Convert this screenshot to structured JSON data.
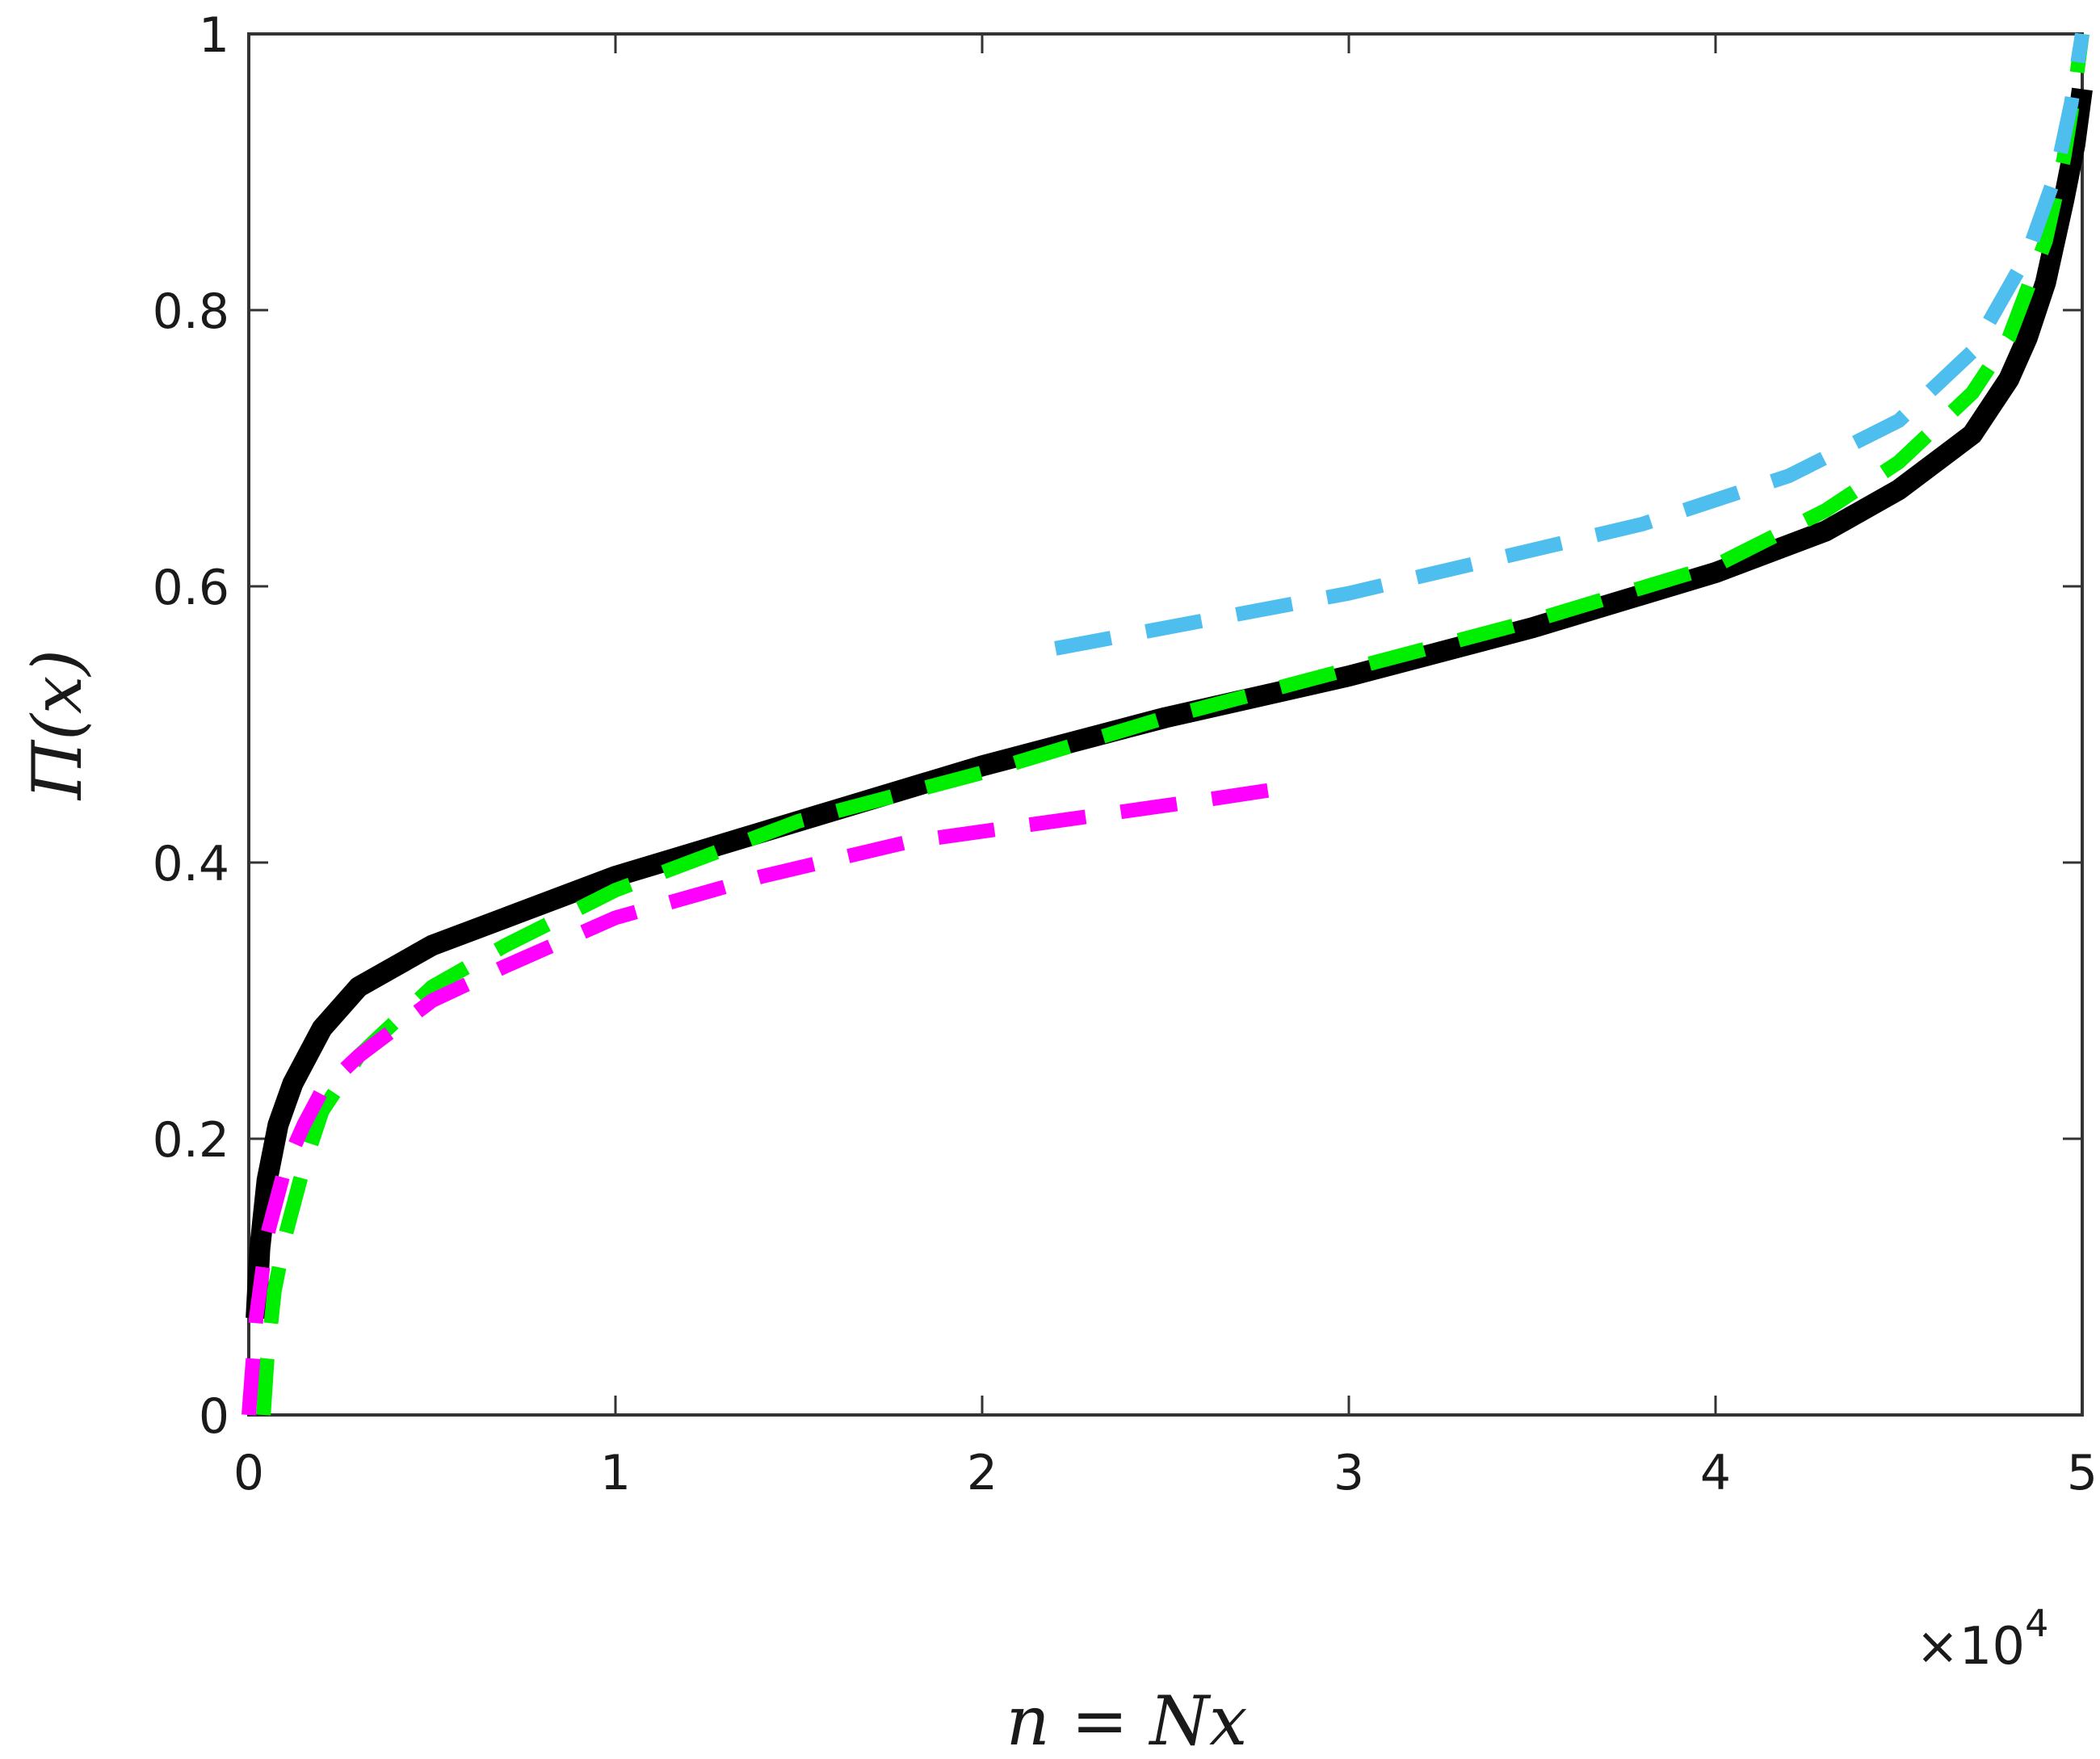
{
  "chart_data": {
    "type": "line",
    "title": "",
    "xlabel": "n = Nx",
    "ylabel": "Π(x)",
    "x_multiplier": "×10",
    "x_multiplier_exp": "4",
    "xlim": [
      0,
      5
    ],
    "ylim": [
      0,
      1
    ],
    "x_ticks": [
      "0",
      "1",
      "2",
      "3",
      "4",
      "5"
    ],
    "y_ticks": [
      "0",
      "0.2",
      "0.4",
      "0.6",
      "0.8",
      "1"
    ],
    "grid": false,
    "legend": "none",
    "series": [
      {
        "color": "#000000",
        "style": "solid",
        "x": [
          0.02,
          0.03,
          0.05,
          0.08,
          0.12,
          0.2,
          0.3,
          0.5,
          0.7,
          1.0,
          1.5,
          2.0,
          2.5,
          3.0,
          3.5,
          4.0,
          4.3,
          4.5,
          4.7,
          4.8,
          4.85,
          4.9,
          4.95,
          4.98,
          5.0
        ],
        "y": [
          0.07,
          0.12,
          0.17,
          0.21,
          0.24,
          0.28,
          0.31,
          0.34,
          0.36,
          0.39,
          0.43,
          0.47,
          0.505,
          0.535,
          0.57,
          0.61,
          0.64,
          0.67,
          0.71,
          0.75,
          0.78,
          0.82,
          0.88,
          0.92,
          0.96
        ]
      },
      {
        "color": "#00ee00",
        "style": "dashed",
        "x": [
          0.04,
          0.05,
          0.07,
          0.1,
          0.15,
          0.2,
          0.3,
          0.5,
          0.7,
          1.0,
          1.5,
          2.0,
          2.5,
          3.0,
          3.5,
          4.0,
          4.3,
          4.5,
          4.7,
          4.8,
          4.9,
          4.95,
          4.98,
          5.0
        ],
        "y": [
          0.0,
          0.04,
          0.09,
          0.13,
          0.18,
          0.22,
          0.26,
          0.31,
          0.34,
          0.38,
          0.43,
          0.465,
          0.505,
          0.54,
          0.575,
          0.615,
          0.655,
          0.69,
          0.74,
          0.78,
          0.85,
          0.91,
          0.96,
          1.0
        ]
      },
      {
        "color": "#ff00ff",
        "style": "dashed",
        "x": [
          0.0,
          0.02,
          0.05,
          0.1,
          0.15,
          0.2,
          0.3,
          0.5,
          0.7,
          1.0,
          1.4,
          1.8,
          2.2,
          2.6,
          2.85
        ],
        "y": [
          0.0,
          0.07,
          0.13,
          0.18,
          0.21,
          0.235,
          0.26,
          0.3,
          0.325,
          0.36,
          0.39,
          0.415,
          0.43,
          0.445,
          0.455
        ]
      },
      {
        "color": "#4dbeee",
        "style": "dashed",
        "x": [
          2.2,
          2.6,
          3.0,
          3.4,
          3.8,
          4.2,
          4.5,
          4.7,
          4.85,
          4.93,
          4.97,
          5.0
        ],
        "y": [
          0.555,
          0.575,
          0.595,
          0.62,
          0.645,
          0.68,
          0.72,
          0.77,
          0.84,
          0.9,
          0.95,
          1.0
        ]
      }
    ]
  }
}
